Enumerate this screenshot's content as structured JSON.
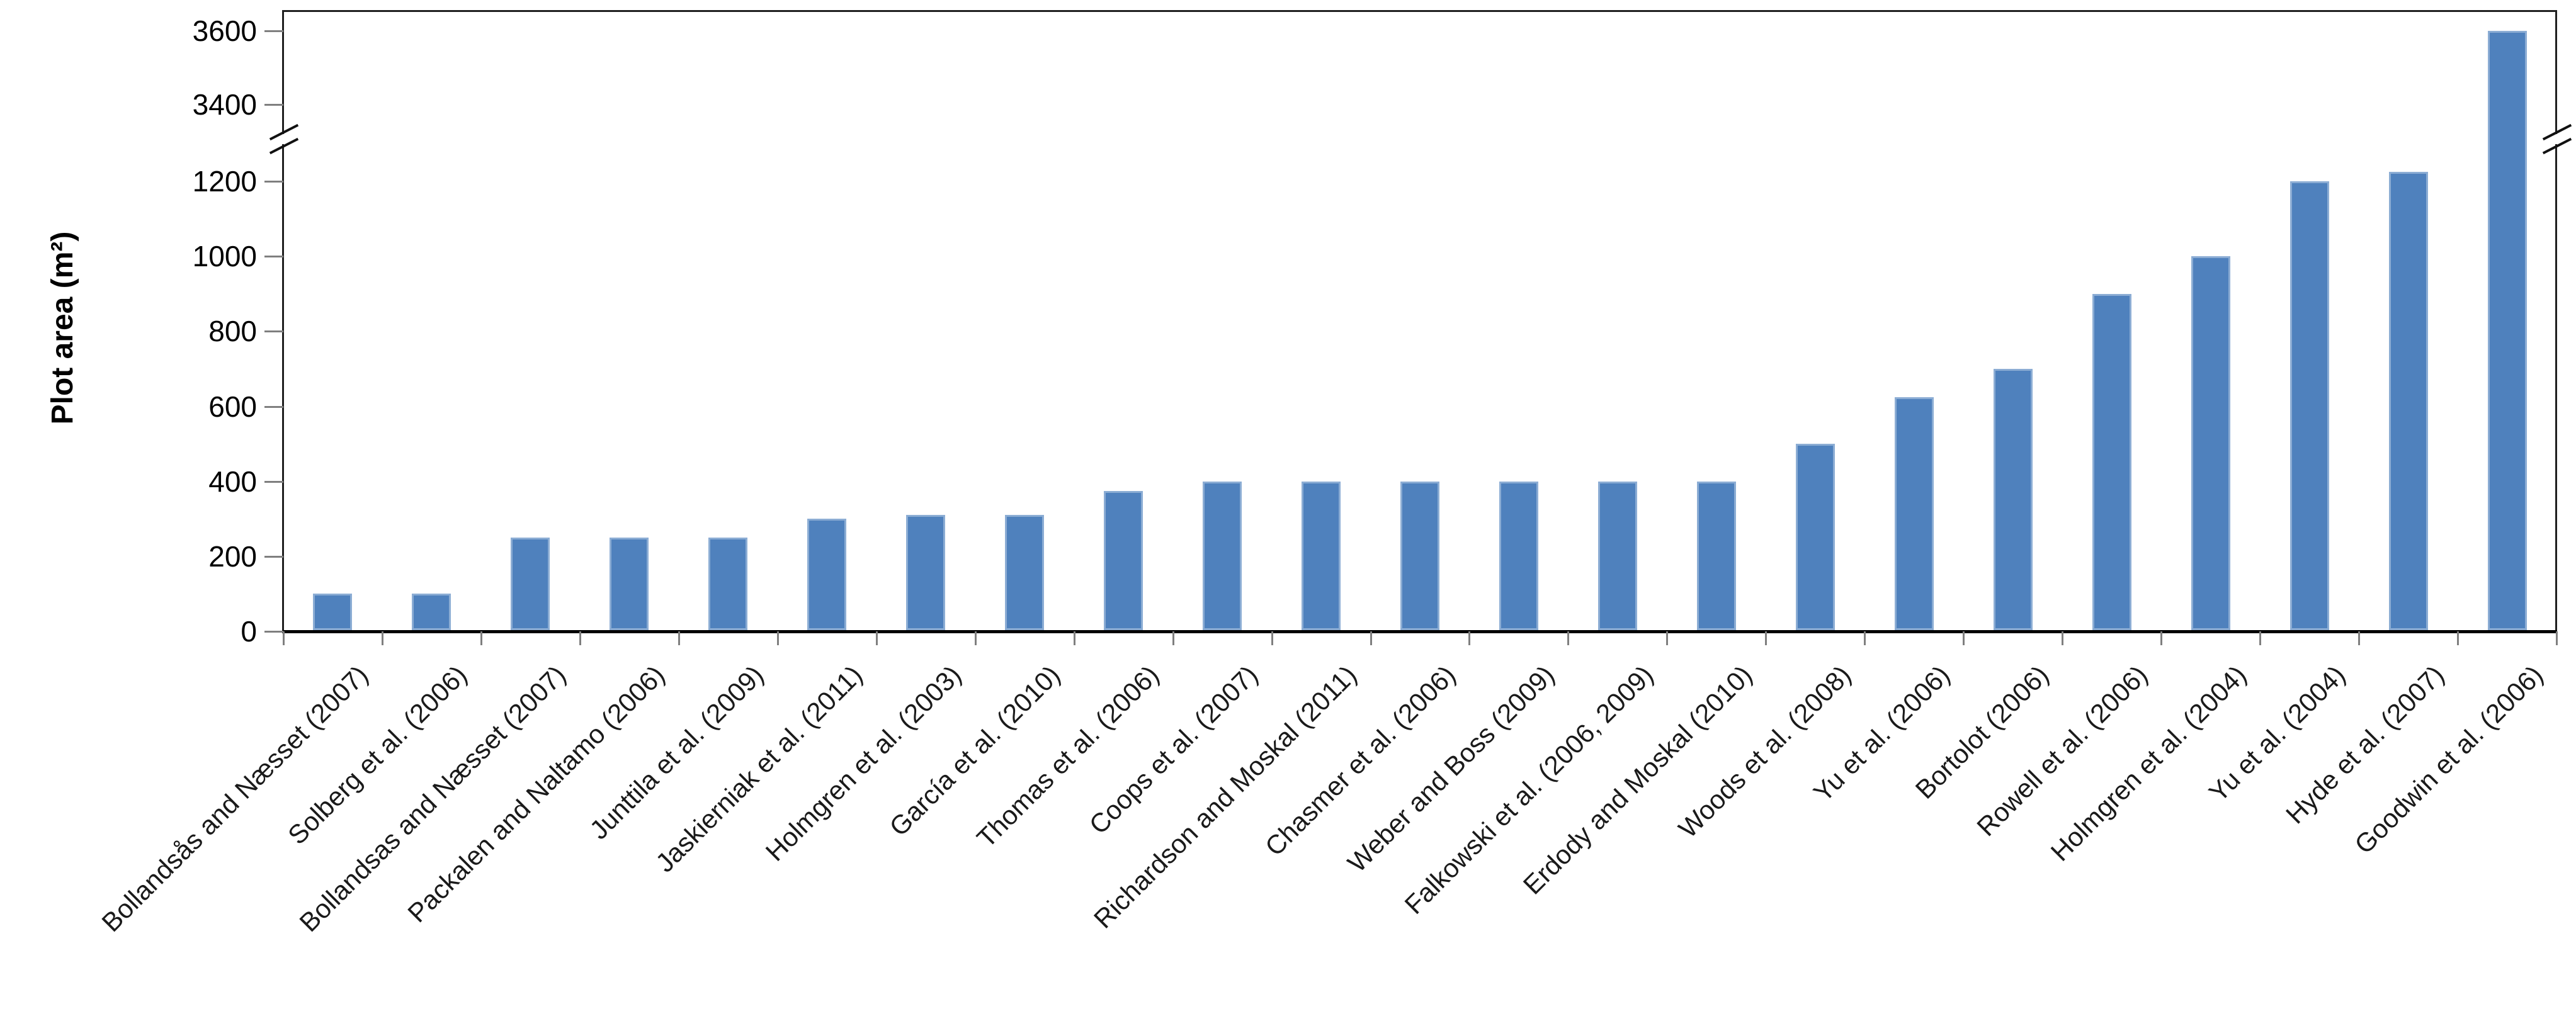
{
  "chart_data": {
    "type": "bar",
    "title": "",
    "xlabel": "",
    "ylabel": "Plot area (m²)",
    "categories": [
      "Bollandsås and Næsset (2007)",
      "Solberg et al. (2006)",
      "Bollandsas and Næsset (2007)",
      "Packalen and Naltamo (2006)",
      "Junttila et al. (2009)",
      "Jaskierniak et al. (2011)",
      "Holmgren et al. (2003)",
      "García et al. (2010)",
      "Thomas et al. (2006)",
      "Coops et al. (2007)",
      "Richardson and Moskal (2011)",
      "Chasmer et al. (2006)",
      "Weber and Boss (2009)",
      "Falkowski et al. (2006, 2009)",
      "Erdody and Moskal (2010)",
      "Woods et al. (2008)",
      "Yu et al. (2006)",
      "Bortolot (2006)",
      "Rowell et al. (2006)",
      "Holmgren et al. (2004)",
      "Yu et al. (2004)",
      "Hyde et al. (2007)",
      "Goodwin et al. (2006)"
    ],
    "values": [
      100,
      100,
      250,
      250,
      250,
      300,
      310,
      310,
      375,
      400,
      400,
      400,
      400,
      400,
      400,
      500,
      625,
      700,
      900,
      1000,
      1200,
      1225,
      3600
    ],
    "y_axis": {
      "lower_ticks": [
        0,
        200,
        400,
        600,
        800,
        1000,
        1200
      ],
      "upper_ticks": [
        3400,
        3600
      ],
      "axis_break": true,
      "break_between": [
        1200,
        3400
      ],
      "lower_range": [
        0,
        1200
      ],
      "upper_range": [
        3400,
        3600
      ]
    },
    "x_tick_label_rotation_deg": -45,
    "grid": false,
    "legend": null,
    "colors": {
      "bar_fill": "#4f81bd",
      "bar_edge": "#c9d9ed",
      "axis_line": "#1f1f1f",
      "baseline": "#000000",
      "tick_mark": "#7f7f7f",
      "tick_text": "#000000",
      "category_text": "#1a1a1a",
      "background": "#ffffff"
    }
  }
}
